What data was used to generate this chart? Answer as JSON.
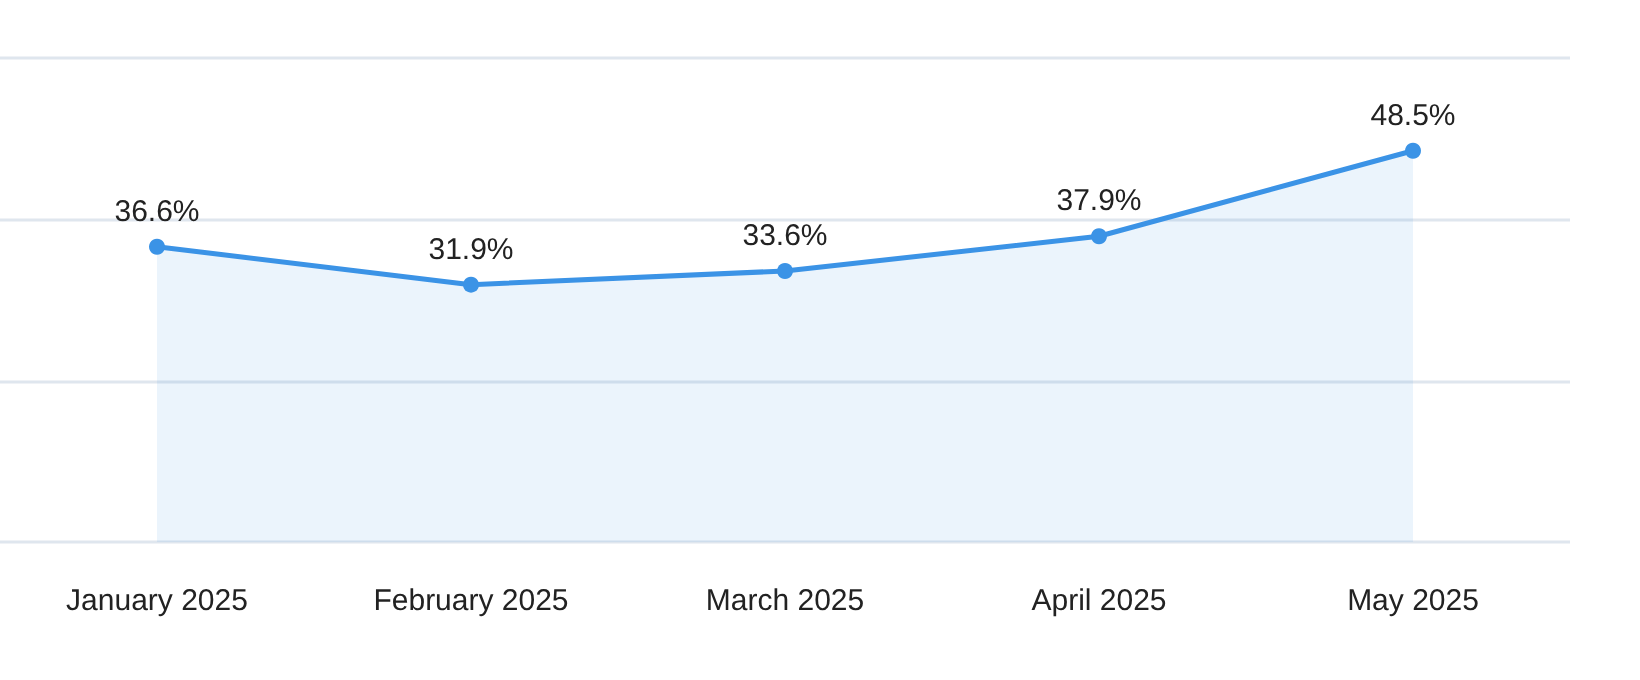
{
  "chart_data": {
    "type": "area",
    "categories": [
      "January 2025",
      "February 2025",
      "March 2025",
      "April 2025",
      "May 2025"
    ],
    "series": [
      {
        "color": "#3b93e6",
        "values": [
          36.6,
          31.9,
          33.6,
          37.9,
          48.5
        ],
        "value_labels": [
          "36.6%",
          "31.9%",
          "33.6%",
          "37.9%",
          "48.5%"
        ]
      }
    ],
    "ylim": [
      0,
      60
    ],
    "yticks": [
      {
        "value": 0,
        "label": null
      },
      {
        "value": 20,
        "label": null
      },
      {
        "value": 40,
        "label": null
      },
      {
        "value": 60,
        "label": null
      }
    ],
    "grid": "y",
    "tick_labels": "x",
    "marker": "circle"
  }
}
